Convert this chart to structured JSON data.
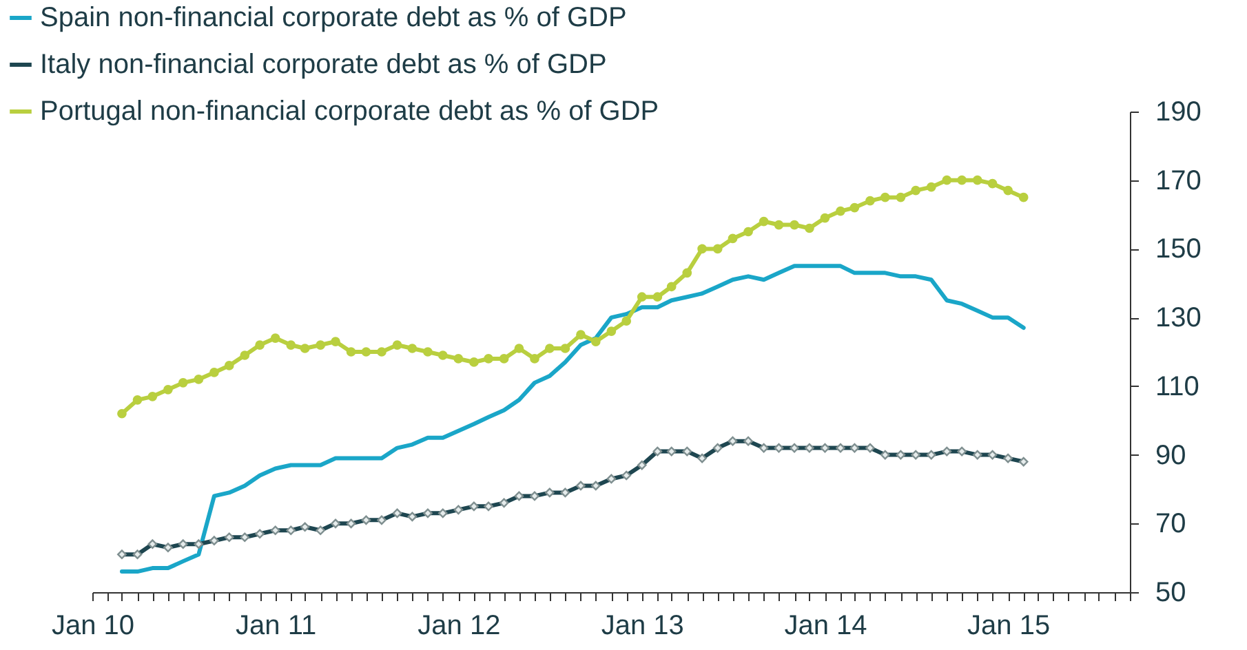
{
  "chart_data": {
    "type": "line",
    "x": [
      "2010-03",
      "2010-04",
      "2010-05",
      "2010-06",
      "2010-07",
      "2010-08",
      "2010-09",
      "2010-10",
      "2010-11",
      "2010-12",
      "2011-01",
      "2011-02",
      "2011-03",
      "2011-04",
      "2011-05",
      "2011-06",
      "2011-07",
      "2011-08",
      "2011-09",
      "2011-10",
      "2011-11",
      "2011-12",
      "2012-01",
      "2012-02",
      "2012-03",
      "2012-04",
      "2012-05",
      "2012-06",
      "2012-07",
      "2012-08",
      "2012-09",
      "2012-10",
      "2012-11",
      "2012-12",
      "2013-01",
      "2013-02",
      "2013-03",
      "2013-04",
      "2013-05",
      "2013-06",
      "2013-07",
      "2013-08",
      "2013-09",
      "2013-10",
      "2013-11",
      "2013-12",
      "2014-01",
      "2014-02",
      "2014-03",
      "2014-04",
      "2014-05",
      "2014-06",
      "2014-07",
      "2014-08",
      "2014-09",
      "2014-10",
      "2014-11",
      "2014-12",
      "2015-01",
      "2015-02"
    ],
    "series": [
      {
        "name": "Spain non-financial corporate debt as % of GDP",
        "color": "#1aa6c8",
        "marker": "none",
        "values": [
          56,
          56,
          57,
          57,
          59,
          61,
          78,
          79,
          81,
          84,
          86,
          87,
          87,
          87,
          89,
          89,
          89,
          89,
          92,
          93,
          95,
          95,
          97,
          99,
          101,
          103,
          106,
          111,
          113,
          117,
          122,
          124,
          130,
          131,
          133,
          133,
          135,
          136,
          137,
          139,
          141,
          142,
          141,
          143,
          145,
          145,
          145,
          145,
          143,
          143,
          143,
          142,
          142,
          141,
          135,
          134,
          132,
          130,
          130,
          127
        ]
      },
      {
        "name": "Italy non-financial corporate debt as % of GDP",
        "color": "#1e4650",
        "marker": "diamond",
        "values": [
          61,
          61,
          64,
          63,
          64,
          64,
          65,
          66,
          66,
          67,
          68,
          68,
          69,
          68,
          70,
          70,
          71,
          71,
          73,
          72,
          73,
          73,
          74,
          75,
          75,
          76,
          78,
          78,
          79,
          79,
          81,
          81,
          83,
          84,
          87,
          91,
          91,
          91,
          89,
          92,
          94,
          94,
          92,
          92,
          92,
          92,
          92,
          92,
          92,
          92,
          90,
          90,
          90,
          90,
          91,
          91,
          90,
          90,
          89,
          88
        ]
      },
      {
        "name": "Portugal non-financial corporate debt as % of GDP",
        "color": "#b9cf3f",
        "marker": "circle",
        "values": [
          102,
          106,
          107,
          109,
          111,
          112,
          114,
          116,
          119,
          122,
          124,
          122,
          121,
          122,
          123,
          120,
          120,
          120,
          122,
          121,
          120,
          119,
          118,
          117,
          118,
          118,
          121,
          118,
          121,
          121,
          125,
          123,
          126,
          129,
          136,
          136,
          139,
          143,
          150,
          150,
          153,
          155,
          158,
          157,
          157,
          156,
          159,
          161,
          162,
          164,
          165,
          165,
          167,
          168,
          170,
          170,
          170,
          169,
          167,
          165
        ]
      }
    ],
    "xlim": [
      "2010-01",
      "2015-09"
    ],
    "xticks": [
      {
        "value": "2010-01",
        "label": "Jan 10"
      },
      {
        "value": "2010-02",
        "label": null
      },
      {
        "value": "2010-03",
        "label": null
      },
      {
        "value": "2010-04",
        "label": null
      },
      {
        "value": "2010-05",
        "label": null
      },
      {
        "value": "2010-06",
        "label": null
      },
      {
        "value": "2010-07",
        "label": null
      },
      {
        "value": "2010-08",
        "label": null
      },
      {
        "value": "2010-09",
        "label": null
      },
      {
        "value": "2010-10",
        "label": null
      },
      {
        "value": "2010-11",
        "label": null
      },
      {
        "value": "2010-12",
        "label": null
      },
      {
        "value": "2011-01",
        "label": "Jan 11"
      },
      {
        "value": "2011-02",
        "label": null
      },
      {
        "value": "2011-03",
        "label": null
      },
      {
        "value": "2011-04",
        "label": null
      },
      {
        "value": "2011-05",
        "label": null
      },
      {
        "value": "2011-06",
        "label": null
      },
      {
        "value": "2011-07",
        "label": null
      },
      {
        "value": "2011-08",
        "label": null
      },
      {
        "value": "2011-09",
        "label": null
      },
      {
        "value": "2011-10",
        "label": null
      },
      {
        "value": "2011-11",
        "label": null
      },
      {
        "value": "2011-12",
        "label": null
      },
      {
        "value": "2012-01",
        "label": "Jan 12"
      },
      {
        "value": "2012-02",
        "label": null
      },
      {
        "value": "2012-03",
        "label": null
      },
      {
        "value": "2012-04",
        "label": null
      },
      {
        "value": "2012-05",
        "label": null
      },
      {
        "value": "2012-06",
        "label": null
      },
      {
        "value": "2012-07",
        "label": null
      },
      {
        "value": "2012-08",
        "label": null
      },
      {
        "value": "2012-09",
        "label": null
      },
      {
        "value": "2012-10",
        "label": null
      },
      {
        "value": "2012-11",
        "label": null
      },
      {
        "value": "2012-12",
        "label": null
      },
      {
        "value": "2013-01",
        "label": "Jan 13"
      },
      {
        "value": "2013-02",
        "label": null
      },
      {
        "value": "2013-03",
        "label": null
      },
      {
        "value": "2013-04",
        "label": null
      },
      {
        "value": "2013-05",
        "label": null
      },
      {
        "value": "2013-06",
        "label": null
      },
      {
        "value": "2013-07",
        "label": null
      },
      {
        "value": "2013-08",
        "label": null
      },
      {
        "value": "2013-09",
        "label": null
      },
      {
        "value": "2013-10",
        "label": null
      },
      {
        "value": "2013-11",
        "label": null
      },
      {
        "value": "2013-12",
        "label": null
      },
      {
        "value": "2014-01",
        "label": "Jan 14"
      },
      {
        "value": "2014-02",
        "label": null
      },
      {
        "value": "2014-03",
        "label": null
      },
      {
        "value": "2014-04",
        "label": null
      },
      {
        "value": "2014-05",
        "label": null
      },
      {
        "value": "2014-06",
        "label": null
      },
      {
        "value": "2014-07",
        "label": null
      },
      {
        "value": "2014-08",
        "label": null
      },
      {
        "value": "2014-09",
        "label": null
      },
      {
        "value": "2014-10",
        "label": null
      },
      {
        "value": "2014-11",
        "label": null
      },
      {
        "value": "2014-12",
        "label": null
      },
      {
        "value": "2015-01",
        "label": "Jan 15"
      },
      {
        "value": "2015-02",
        "label": null
      },
      {
        "value": "2015-03",
        "label": null
      },
      {
        "value": "2015-04",
        "label": null
      },
      {
        "value": "2015-05",
        "label": null
      },
      {
        "value": "2015-06",
        "label": null
      },
      {
        "value": "2015-07",
        "label": null
      },
      {
        "value": "2015-08",
        "label": null
      },
      {
        "value": "2015-09",
        "label": null
      }
    ],
    "ylim": [
      50,
      190
    ],
    "yticks": [
      50,
      70,
      90,
      110,
      130,
      150,
      170,
      190
    ],
    "grid": false,
    "legend": "top left"
  }
}
